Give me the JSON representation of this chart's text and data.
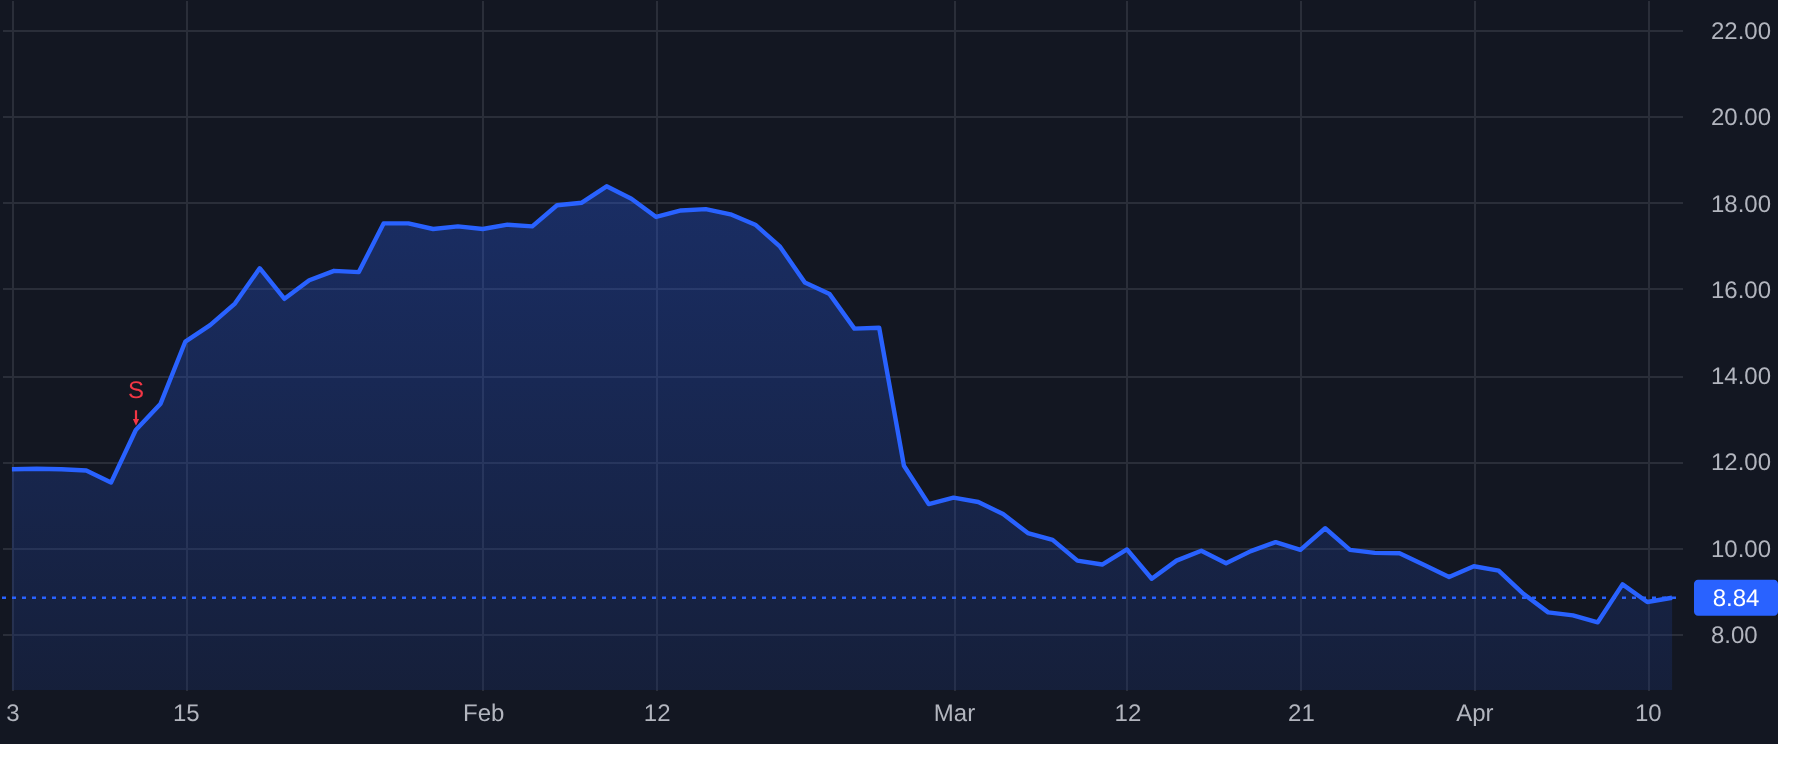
{
  "chart_data": {
    "type": "area",
    "categories": [
      "3",
      null,
      null,
      null,
      null,
      null,
      null,
      "15",
      null,
      null,
      null,
      null,
      null,
      null,
      null,
      null,
      null,
      null,
      null,
      "Feb",
      null,
      null,
      null,
      null,
      null,
      null,
      "12",
      null,
      null,
      null,
      null,
      null,
      null,
      null,
      null,
      null,
      null,
      null,
      "Mar",
      null,
      null,
      null,
      null,
      null,
      null,
      "12",
      null,
      null,
      null,
      null,
      null,
      null,
      "21",
      null,
      null,
      null,
      null,
      null,
      null,
      "Apr",
      null,
      null,
      null,
      null,
      null,
      null,
      "10",
      null
    ],
    "series": [
      {
        "color": "#2962ff",
        "values": [
          11.82,
          11.83,
          11.82,
          11.79,
          11.51,
          12.73,
          13.34,
          14.78,
          15.16,
          15.66,
          16.48,
          15.77,
          16.2,
          16.42,
          16.39,
          17.52,
          17.52,
          17.39,
          17.45,
          17.39,
          17.49,
          17.45,
          17.94,
          18.0,
          18.38,
          18.09,
          17.67,
          17.82,
          17.85,
          17.73,
          17.49,
          16.98,
          16.15,
          15.88,
          15.08,
          15.1,
          11.9,
          11.01,
          11.16,
          11.06,
          10.78,
          10.34,
          10.18,
          9.7,
          9.61,
          9.96,
          9.28,
          9.7,
          9.93,
          9.64,
          9.92,
          10.13,
          9.95,
          10.45,
          9.95,
          9.88,
          9.87,
          9.6,
          9.32,
          9.57,
          9.47,
          8.93,
          8.5,
          8.43,
          8.27,
          9.15,
          8.74,
          8.84
        ]
      }
    ],
    "ylim": [
      6.7,
      22.7
    ],
    "yticks": [
      {
        "value": 8,
        "label": "8.00"
      },
      {
        "value": 10,
        "label": "10.00"
      },
      {
        "value": 12,
        "label": "12.00"
      },
      {
        "value": 14,
        "label": "14.00"
      },
      {
        "value": 16,
        "label": "16.00"
      },
      {
        "value": 18,
        "label": "18.00"
      },
      {
        "value": 20,
        "label": "20.00"
      },
      {
        "value": 22,
        "label": "22.00"
      }
    ],
    "ref_lines": [
      {
        "axis": "y",
        "value": 8.84,
        "label": "8.84",
        "color": "#2962ff",
        "line_style": "dotted"
      }
    ],
    "annotations": [
      "S"
    ],
    "grid": true
  }
}
